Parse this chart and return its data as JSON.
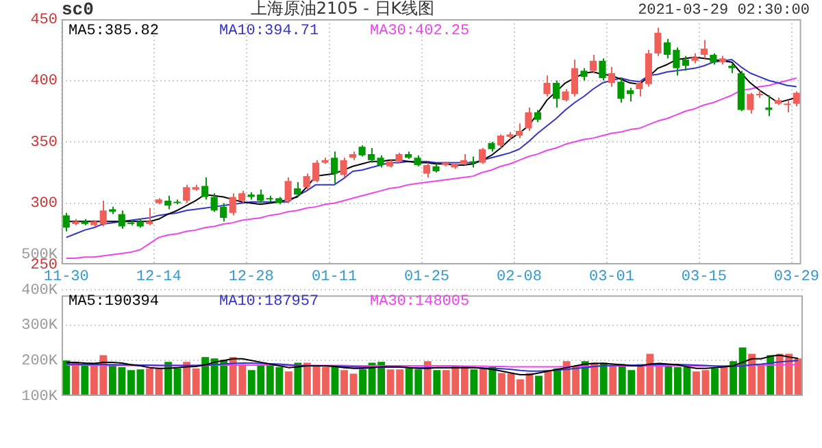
{
  "chart_data": [
    {
      "type": "candlestick",
      "title": "sc0",
      "subtitle": "上海原油2105 - 日K线图",
      "annotations": [
        "2021-03-29 02:30:00"
      ],
      "categories": [
        "11-30",
        null,
        null,
        null,
        null,
        null,
        null,
        null,
        null,
        null,
        "12-14",
        null,
        null,
        null,
        null,
        null,
        null,
        null,
        null,
        null,
        "12-28",
        null,
        null,
        null,
        null,
        null,
        null,
        null,
        null,
        "01-11",
        null,
        null,
        null,
        null,
        null,
        null,
        null,
        null,
        null,
        "01-25",
        null,
        null,
        null,
        null,
        null,
        null,
        null,
        null,
        null,
        "02-08",
        null,
        null,
        null,
        null,
        null,
        null,
        null,
        null,
        null,
        "03-01",
        null,
        null,
        null,
        null,
        null,
        null,
        null,
        null,
        null,
        "03-15",
        null,
        null,
        null,
        null,
        null,
        null,
        null,
        null,
        null,
        "03-29"
      ],
      "ylim": [
        250,
        450
      ],
      "yticks": [
        250,
        300,
        350,
        400,
        450
      ],
      "grid": true,
      "legend": "top left",
      "marker": "none",
      "series": [
        {
          "ohlc": [
            [
              290,
              292,
              277,
              280
            ],
            [
              283,
              287,
              282,
              285
            ],
            [
              285,
              287,
              282,
              283
            ],
            [
              282,
              286,
              281,
              285
            ],
            [
              283,
              302,
              281,
              294
            ],
            [
              295,
              297,
              291,
              293
            ],
            [
              291,
              294,
              279,
              281
            ],
            [
              284,
              286,
              282,
              283
            ],
            [
              285,
              287,
              280,
              281
            ],
            [
              283,
              296,
              282,
              285
            ],
            [
              300,
              304,
              299,
              303
            ],
            [
              302,
              306,
              295,
              298
            ],
            [
              301,
              303,
              299,
              300
            ],
            [
              302,
              315,
              300,
              313
            ],
            [
              311,
              315,
              310,
              313
            ],
            [
              314,
              321,
              303,
              305
            ],
            [
              305,
              308,
              293,
              294
            ],
            [
              297,
              300,
              285,
              288
            ],
            [
              292,
              308,
              290,
              305
            ],
            [
              302,
              310,
              300,
              308
            ],
            [
              307,
              309,
              303,
              305
            ],
            [
              307,
              311,
              300,
              302
            ],
            [
              304,
              306,
              301,
              303
            ],
            [
              304,
              305,
              299,
              300
            ],
            [
              302,
              321,
              300,
              318
            ],
            [
              312,
              317,
              305,
              307
            ],
            [
              313,
              324,
              311,
              322
            ],
            [
              318,
              335,
              317,
              333
            ],
            [
              333,
              337,
              332,
              335
            ],
            [
              337,
              342,
              316,
              324
            ],
            [
              323,
              337,
              321,
              335
            ],
            [
              337,
              342,
              335,
              340
            ],
            [
              346,
              347,
              338,
              339
            ],
            [
              340,
              345,
              333,
              335
            ],
            [
              337,
              339,
              329,
              331
            ],
            [
              330,
              335,
              329,
              334
            ],
            [
              334,
              341,
              333,
              340
            ],
            [
              340,
              342,
              336,
              337
            ],
            [
              337,
              339,
              330,
              331
            ],
            [
              324,
              333,
              321,
              331
            ],
            [
              330,
              332,
              325,
              326
            ],
            [
              331,
              334,
              330,
              333
            ],
            [
              329,
              333,
              328,
              332
            ],
            [
              332,
              340,
              331,
              335
            ],
            [
              333,
              338,
              329,
              333
            ],
            [
              333,
              345,
              332,
              344
            ],
            [
              349,
              350,
              342,
              344
            ],
            [
              347,
              356,
              345,
              355
            ],
            [
              354,
              358,
              352,
              356
            ],
            [
              355,
              365,
              353,
              359
            ],
            [
              361,
              378,
              359,
              374
            ],
            [
              374,
              376,
              366,
              368
            ],
            [
              389,
              404,
              387,
              398
            ],
            [
              398,
              400,
              378,
              385
            ],
            [
              384,
              393,
              383,
              391
            ],
            [
              389,
              417,
              387,
              410
            ],
            [
              408,
              410,
              400,
              403
            ],
            [
              408,
              421,
              406,
              416
            ],
            [
              416,
              418,
              400,
              402
            ],
            [
              398,
              411,
              395,
              406
            ],
            [
              399,
              402,
              382,
              385
            ],
            [
              392,
              394,
              383,
              389
            ],
            [
              393,
              400,
              387,
              398
            ],
            [
              397,
              425,
              395,
              422
            ],
            [
              422,
              443,
              420,
              439
            ],
            [
              431,
              434,
              418,
              421
            ],
            [
              425,
              427,
              404,
              410
            ],
            [
              417,
              420,
              408,
              412
            ],
            [
              416,
              422,
              414,
              419
            ],
            [
              421,
              433,
              418,
              426
            ],
            [
              421,
              422,
              413,
              415
            ],
            [
              415,
              420,
              413,
              418
            ],
            [
              412,
              414,
              406,
              410
            ],
            [
              406,
              408,
              375,
              376
            ],
            [
              376,
              390,
              373,
              389
            ],
            [
              388,
              392,
              386,
              389
            ],
            [
              378,
              388,
              371,
              376
            ],
            [
              381,
              386,
              380,
              384
            ],
            [
              380,
              384,
              374,
              381
            ],
            [
              381,
              391,
              379,
              390
            ]
          ],
          "colors": [
            "#009900",
            "#f0605a",
            "#009900",
            "#f0605a",
            "#f0605a",
            "#009900",
            "#009900",
            "#009900",
            "#009900",
            "#f0605a",
            "#f0605a",
            "#009900",
            "#009900",
            "#f0605a",
            "#f0605a",
            "#009900",
            "#009900",
            "#009900",
            "#f0605a",
            "#f0605a",
            "#009900",
            "#009900",
            "#009900",
            "#009900",
            "#f0605a",
            "#009900",
            "#f0605a",
            "#f0605a",
            "#f0605a",
            "#009900",
            "#f0605a",
            "#f0605a",
            "#009900",
            "#009900",
            "#009900",
            "#f0605a",
            "#f0605a",
            "#009900",
            "#009900",
            "#f0605a",
            "#009900",
            "#f0605a",
            "#f0605a",
            "#f0605a",
            "#009900",
            "#f0605a",
            "#009900",
            "#f0605a",
            "#f0605a",
            "#f0605a",
            "#f0605a",
            "#009900",
            "#f0605a",
            "#009900",
            "#f0605a",
            "#f0605a",
            "#009900",
            "#f0605a",
            "#009900",
            "#f0605a",
            "#009900",
            "#009900",
            "#f0605a",
            "#f0605a",
            "#f0605a",
            "#009900",
            "#009900",
            "#009900",
            "#f0605a",
            "#f0605a",
            "#009900",
            "#f0605a",
            "#009900",
            "#009900",
            "#f0605a",
            "#f0605a",
            "#009900",
            "#f0605a",
            "#f0605a",
            "#f0605a"
          ]
        },
        {
          "type": "line",
          "name": "MA5:385.82",
          "color": "#000000",
          "values": [
            285,
            285,
            285,
            285,
            285,
            285,
            285,
            285,
            285,
            285,
            287,
            291,
            294,
            298,
            302,
            307,
            306,
            305,
            303,
            301,
            300,
            299,
            300,
            301,
            303,
            305,
            313,
            322,
            323,
            324,
            327,
            330,
            332,
            334,
            334,
            335,
            335,
            334,
            333,
            333,
            332,
            332,
            331,
            331,
            332,
            335,
            339,
            345,
            352,
            357,
            363,
            373,
            384,
            391,
            398,
            402,
            406,
            407,
            405,
            404,
            401,
            398,
            397,
            403,
            410,
            413,
            417,
            418,
            419,
            418,
            417,
            416,
            415,
            406,
            398,
            392,
            387,
            382,
            384,
            386
          ]
        },
        {
          "type": "line",
          "name": "MA10:394.71",
          "color": "#3333cc",
          "values": [
            272,
            275,
            278,
            280,
            283,
            284,
            285,
            286,
            287,
            288,
            290,
            291,
            292,
            294,
            295,
            296,
            297,
            298,
            299,
            300,
            301,
            301,
            301,
            301,
            301,
            306,
            310,
            315,
            315,
            315,
            320,
            326,
            327,
            329,
            331,
            333,
            333,
            334,
            334,
            334,
            333,
            333,
            333,
            333,
            333,
            335,
            337,
            339,
            341,
            344,
            350,
            357,
            363,
            369,
            376,
            382,
            387,
            393,
            398,
            400,
            402,
            400,
            399,
            404,
            405,
            407,
            408,
            409,
            410,
            412,
            415,
            416,
            417,
            411,
            406,
            403,
            400,
            398,
            396,
            395
          ]
        },
        {
          "type": "line",
          "name": "MA30:402.25",
          "color": "#ee44ee",
          "values": [
            255,
            255,
            256,
            256,
            257,
            258,
            259,
            260,
            262,
            267,
            272,
            274,
            275,
            277,
            278,
            280,
            281,
            283,
            284,
            286,
            287,
            288,
            290,
            291,
            293,
            294,
            296,
            297,
            299,
            300,
            302,
            304,
            306,
            308,
            310,
            312,
            313,
            315,
            316,
            317,
            318,
            319,
            320,
            321,
            322,
            325,
            327,
            330,
            332,
            335,
            338,
            340,
            343,
            345,
            348,
            350,
            352,
            353,
            355,
            357,
            358,
            360,
            361,
            364,
            367,
            369,
            372,
            375,
            377,
            380,
            382,
            385,
            388,
            392,
            393,
            395,
            396,
            398,
            400,
            402
          ]
        }
      ]
    },
    {
      "type": "bar",
      "categories": [
        null,
        null,
        null,
        null,
        null,
        null,
        null,
        null,
        null,
        null,
        null,
        null,
        null,
        null,
        null,
        null,
        null,
        null,
        null,
        null,
        null,
        null,
        null,
        null,
        null,
        null,
        null,
        null,
        null,
        null,
        null,
        null,
        null,
        null,
        null,
        null,
        null,
        null,
        null,
        null,
        null,
        null,
        null,
        null,
        null,
        null,
        null,
        null,
        null,
        null,
        null,
        null,
        null,
        null,
        null,
        null,
        null,
        null,
        null,
        null,
        null,
        null,
        null,
        null,
        null,
        null,
        null,
        null,
        null,
        null,
        null,
        null,
        null,
        null,
        null,
        null,
        null,
        null,
        null,
        null
      ],
      "ylim": [
        100000,
        500000
      ],
      "yticks": [
        {
          "value": 100000,
          "label": "100K"
        },
        {
          "value": 200000,
          "label": "200K"
        },
        {
          "value": 300000,
          "label": "300K"
        },
        {
          "value": 400000,
          "label": "400K"
        },
        {
          "value": 500000,
          "label": "500K"
        }
      ],
      "grid": "y",
      "tick_labels": "y",
      "legend": "top left",
      "marker": "none",
      "series": [
        {
          "values": [
            200000,
            196000,
            185000,
            190000,
            215000,
            190000,
            181000,
            173000,
            175000,
            178000,
            178000,
            196000,
            178000,
            196000,
            178000,
            210000,
            206000,
            202000,
            210000,
            190000,
            173000,
            185000,
            185000,
            181000,
            169000,
            194000,
            194000,
            185000,
            181000,
            185000,
            173000,
            163000,
            175000,
            194000,
            196000,
            175000,
            175000,
            178000,
            175000,
            198000,
            173000,
            173000,
            185000,
            185000,
            175000,
            178000,
            181000,
            165000,
            163000,
            147000,
            165000,
            157000,
            173000,
            178000,
            198000,
            185000,
            198000,
            194000,
            194000,
            185000,
            190000,
            173000,
            190000,
            219000,
            190000,
            188000,
            181000,
            181000,
            169000,
            173000,
            178000,
            185000,
            198000,
            237000,
            219000,
            185000,
            215000,
            219000,
            219000,
            206000
          ],
          "colors": [
            "#009900",
            "#f0605a",
            "#009900",
            "#f0605a",
            "#f0605a",
            "#009900",
            "#009900",
            "#009900",
            "#009900",
            "#f0605a",
            "#f0605a",
            "#009900",
            "#009900",
            "#f0605a",
            "#f0605a",
            "#009900",
            "#009900",
            "#009900",
            "#f0605a",
            "#f0605a",
            "#009900",
            "#009900",
            "#009900",
            "#009900",
            "#f0605a",
            "#009900",
            "#f0605a",
            "#f0605a",
            "#f0605a",
            "#009900",
            "#f0605a",
            "#f0605a",
            "#009900",
            "#009900",
            "#009900",
            "#f0605a",
            "#f0605a",
            "#009900",
            "#009900",
            "#f0605a",
            "#009900",
            "#f0605a",
            "#f0605a",
            "#f0605a",
            "#009900",
            "#f0605a",
            "#009900",
            "#f0605a",
            "#f0605a",
            "#f0605a",
            "#f0605a",
            "#009900",
            "#f0605a",
            "#009900",
            "#f0605a",
            "#f0605a",
            "#009900",
            "#f0605a",
            "#009900",
            "#f0605a",
            "#009900",
            "#009900",
            "#f0605a",
            "#f0605a",
            "#f0605a",
            "#009900",
            "#009900",
            "#009900",
            "#f0605a",
            "#f0605a",
            "#009900",
            "#f0605a",
            "#009900",
            "#009900",
            "#f0605a",
            "#f0605a",
            "#009900",
            "#f0605a",
            "#f0605a",
            "#f0605a"
          ]
        },
        {
          "type": "line",
          "name": "MA5:190394",
          "color": "#000000",
          "values": [
            195000,
            195000,
            193000,
            192000,
            195000,
            195000,
            193000,
            188000,
            185000,
            180000,
            178000,
            178000,
            180000,
            182000,
            183000,
            188000,
            195000,
            200000,
            205000,
            205000,
            200000,
            195000,
            190000,
            185000,
            180000,
            182000,
            185000,
            185000,
            185000,
            183000,
            180000,
            178000,
            178000,
            180000,
            182000,
            182000,
            182000,
            180000,
            178000,
            178000,
            180000,
            180000,
            180000,
            180000,
            180000,
            178000,
            175000,
            170000,
            165000,
            160000,
            160000,
            165000,
            170000,
            175000,
            180000,
            185000,
            190000,
            192000,
            192000,
            190000,
            188000,
            185000,
            185000,
            190000,
            192000,
            190000,
            188000,
            182000,
            178000,
            178000,
            180000,
            182000,
            185000,
            195000,
            205000,
            205000,
            212000,
            215000,
            210000,
            206000
          ]
        },
        {
          "type": "line",
          "name": "MA10:187957",
          "color": "#3333cc",
          "values": [
            190000,
            190000,
            189000,
            189000,
            189000,
            188000,
            188000,
            188000,
            187000,
            187000,
            186000,
            186000,
            186000,
            186000,
            186000,
            187000,
            188000,
            190000,
            192000,
            193000,
            193000,
            192000,
            191000,
            190000,
            188000,
            186000,
            185000,
            185000,
            184000,
            184000,
            183000,
            182000,
            181000,
            181000,
            181000,
            181000,
            181000,
            180000,
            180000,
            180000,
            180000,
            180000,
            180000,
            180000,
            180000,
            179000,
            178000,
            177000,
            175000,
            172000,
            170000,
            170000,
            171000,
            173000,
            175000,
            178000,
            180000,
            183000,
            185000,
            186000,
            187000,
            187000,
            187000,
            188000,
            189000,
            189000,
            189000,
            188000,
            187000,
            186000,
            184000,
            183000,
            183000,
            185000,
            188000,
            190000,
            193000,
            196000,
            198000,
            200000
          ]
        },
        {
          "type": "line",
          "name": "MA30:148005",
          "color": "#ee44ee",
          "values": [
            187000,
            187000,
            187000,
            186000,
            186000,
            186000,
            186000,
            186000,
            186000,
            186000,
            186000,
            186000,
            186000,
            186000,
            186000,
            186000,
            187000,
            187000,
            187000,
            187000,
            187000,
            187000,
            187000,
            186000,
            186000,
            186000,
            186000,
            186000,
            186000,
            186000,
            186000,
            185000,
            185000,
            185000,
            185000,
            185000,
            185000,
            185000,
            185000,
            185000,
            185000,
            185000,
            185000,
            184000,
            184000,
            184000,
            183000,
            183000,
            182000,
            182000,
            182000,
            182000,
            182000,
            182000,
            183000,
            183000,
            184000,
            184000,
            185000,
            185000,
            185000,
            185000,
            185000,
            185000,
            185000,
            185000,
            185000,
            185000,
            185000,
            185000,
            185000,
            185000,
            185000,
            186000,
            186000,
            187000,
            187000,
            188000,
            188000,
            188000
          ]
        }
      ]
    }
  ]
}
